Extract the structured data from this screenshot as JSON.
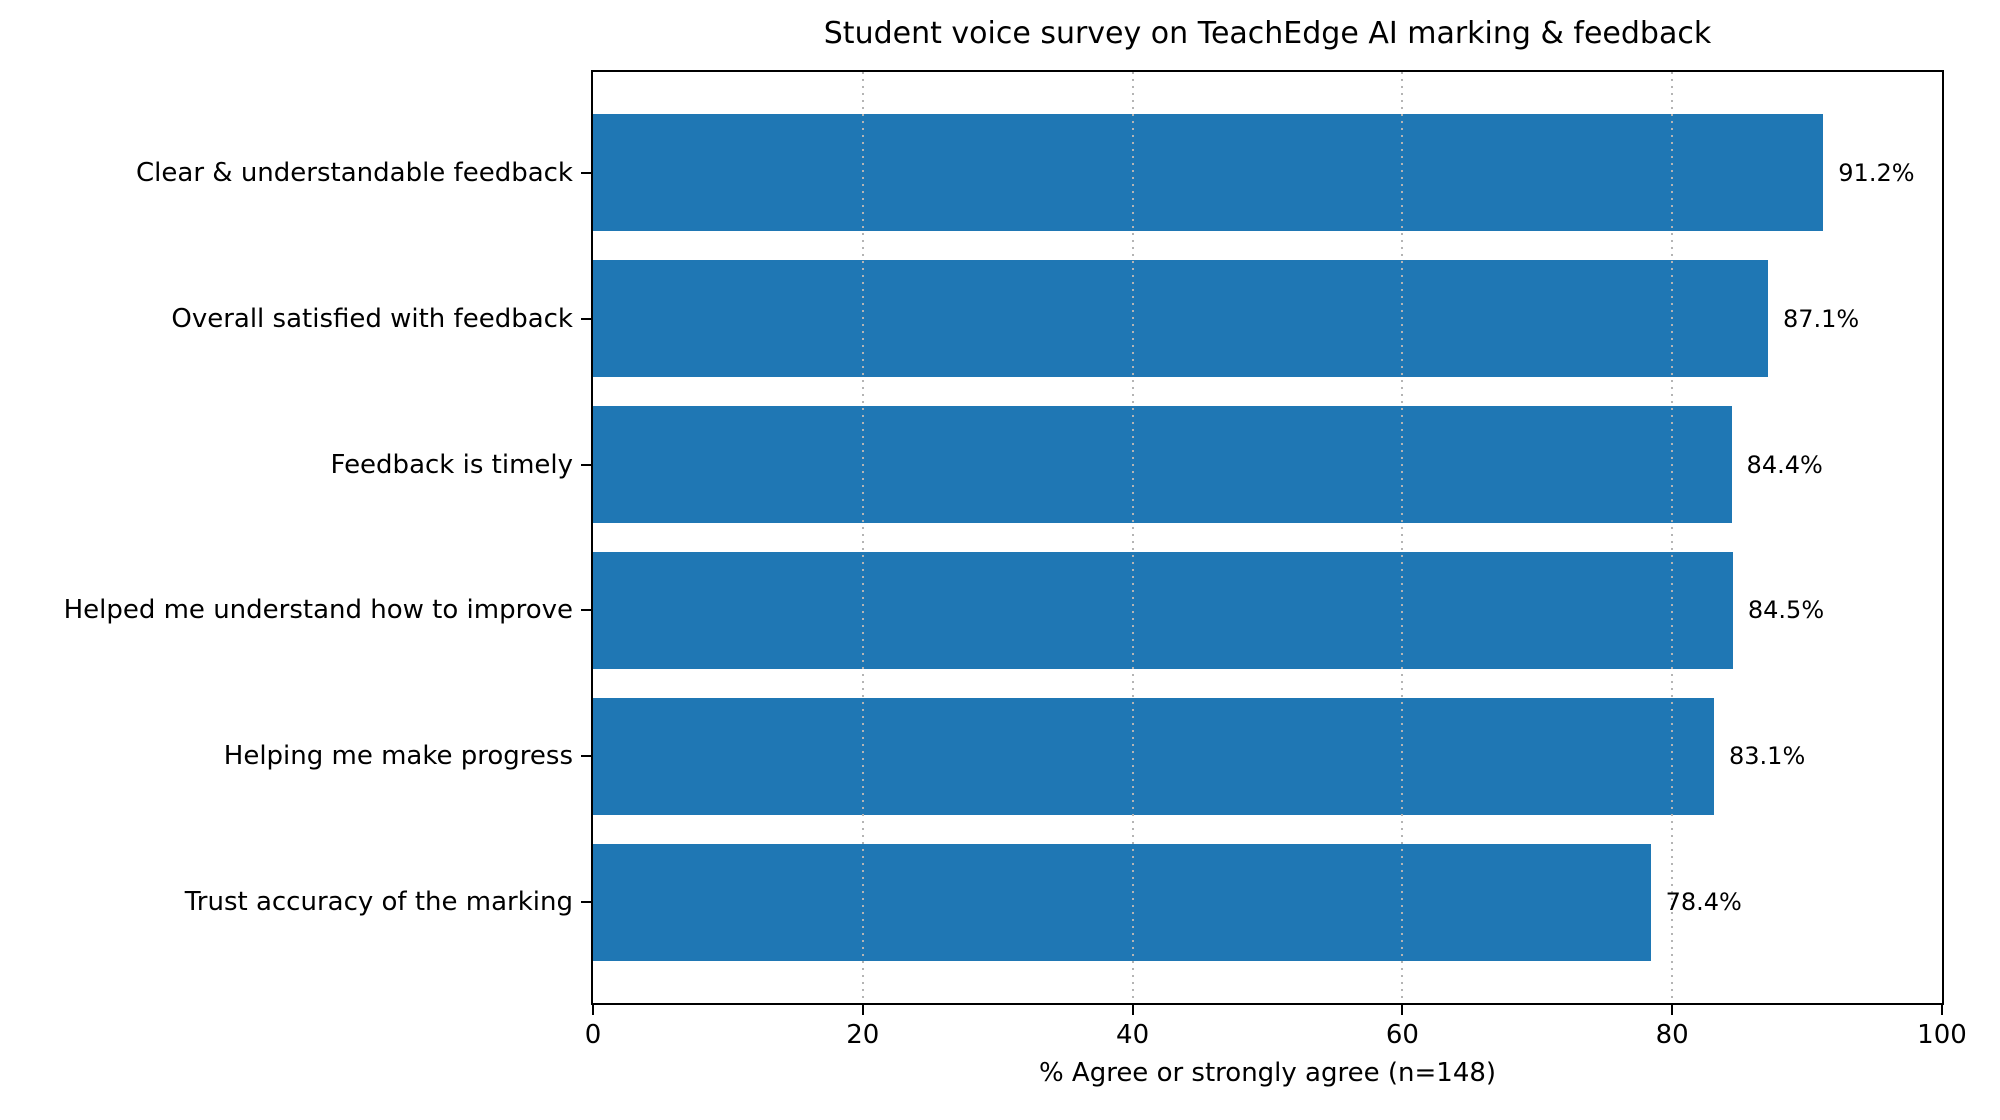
{
  "chart_data": {
    "type": "bar",
    "orientation": "horizontal",
    "title": "Student voice survey on TeachEdge AI marking & feedback",
    "categories": [
      "Clear & understandable feedback",
      "Overall satisfied with feedback",
      "Feedback is timely",
      "Helped me understand how to improve",
      "Helping me make progress",
      "Trust accuracy of the marking"
    ],
    "values": [
      91.2,
      87.1,
      84.4,
      84.5,
      83.1,
      78.4
    ],
    "value_labels": [
      "91.2%",
      "87.1%",
      "84.4%",
      "84.5%",
      "83.1%",
      "78.4%"
    ],
    "xlabel": "% Agree or strongly agree (n=148)",
    "ylabel": "",
    "xlim": [
      0,
      100
    ],
    "xticks": [
      0,
      20,
      40,
      60,
      80,
      100
    ],
    "xtick_labels": [
      "0",
      "20",
      "40",
      "60",
      "80",
      "100"
    ],
    "grid": {
      "axis": "x",
      "style": "dotted",
      "color": "#b4b4b4",
      "drawn_over_bars": true
    },
    "bar_color": "#1f77b4",
    "frame": "full-box",
    "legend": null,
    "background": "#ffffff"
  }
}
